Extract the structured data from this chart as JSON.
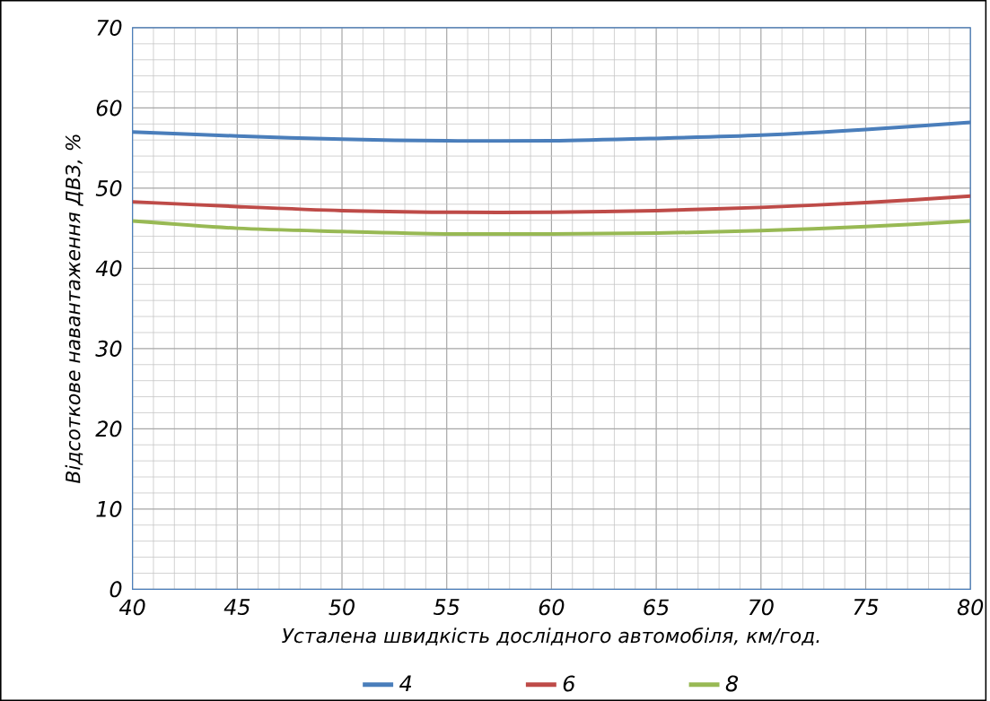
{
  "chart_data": {
    "type": "line",
    "xlabel": "Усталена швидкість дослідного автомобіля, км/год.",
    "ylabel": "Відсоткове навантаження ДВЗ, %",
    "x": [
      40,
      45,
      50,
      55,
      60,
      65,
      70,
      75,
      80
    ],
    "series": [
      {
        "name": "4",
        "color": "#4a7ebb",
        "values": [
          57.0,
          56.5,
          56.1,
          55.9,
          55.9,
          56.2,
          56.6,
          57.3,
          58.2
        ]
      },
      {
        "name": "6",
        "color": "#be4b48",
        "values": [
          48.3,
          47.7,
          47.2,
          47.0,
          47.0,
          47.2,
          47.6,
          48.2,
          49.0
        ]
      },
      {
        "name": "8",
        "color": "#98b954",
        "values": [
          45.9,
          45.0,
          44.6,
          44.3,
          44.3,
          44.4,
          44.7,
          45.2,
          45.9
        ]
      }
    ],
    "xlim": [
      40,
      80
    ],
    "xticks": [
      40,
      45,
      50,
      55,
      60,
      65,
      70,
      75,
      80
    ],
    "ylim": [
      0,
      70
    ],
    "yticks": [
      0,
      10,
      20,
      30,
      40,
      50,
      60,
      70
    ],
    "grid": true,
    "legend": "bottom",
    "marker": "none",
    "line_style": "solid"
  }
}
